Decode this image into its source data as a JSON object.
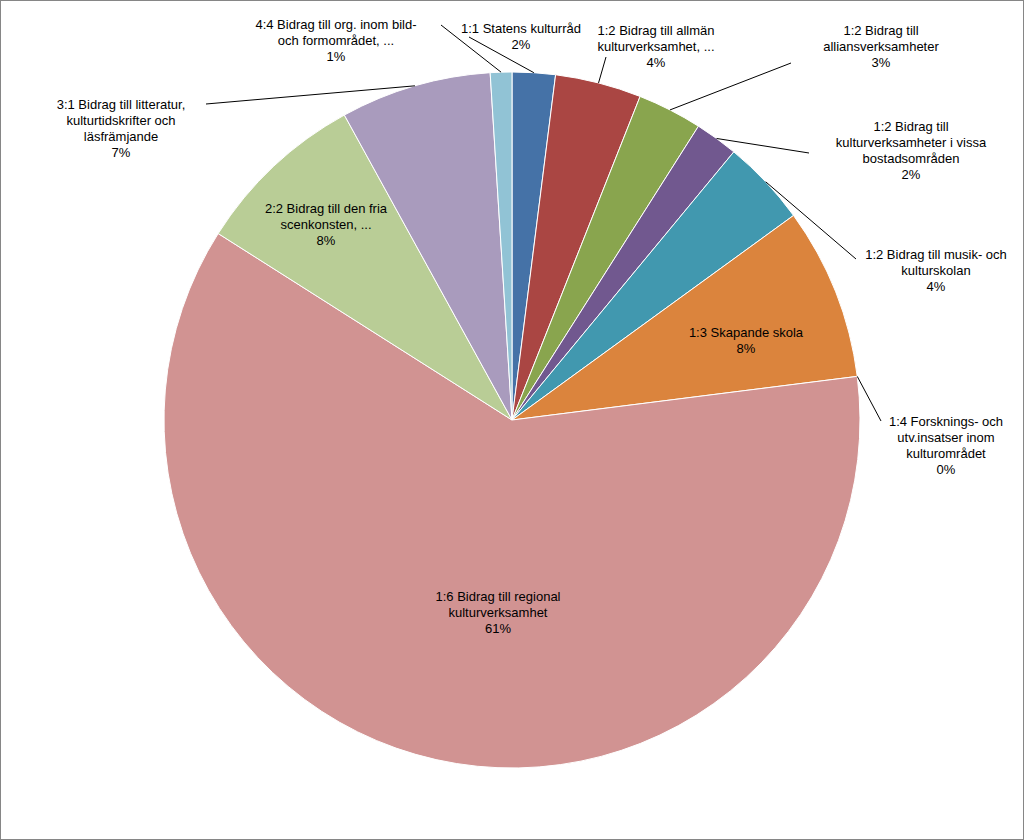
{
  "chart_data": {
    "type": "pie",
    "categories": [
      "1:1 Statens kulturråd",
      "1:2 Bidrag till allmän kulturverksamhet, ...",
      "1:2 Bidrag till alliansverksamheter",
      "1:2 Bidrag till kulturverksamheter i vissa bostadsområden",
      "1:2 Bidrag till musik- och kulturskolan",
      "1:3 Skapande skola",
      "1:4 Forsknings- och utv.insatser inom kulturområdet",
      "1:6 Bidrag till regional kulturverksamhet",
      "2:2 Bidrag till den fria scenkonsten, ...",
      "3:1 Bidrag till litteratur, kulturtidskrifter och läsfrämjande",
      "4:4 Bidrag till org. inom bild- och formområdet, ..."
    ],
    "values": [
      2,
      4,
      3,
      2,
      4,
      8,
      0,
      61,
      8,
      7,
      1
    ],
    "value_labels": [
      "2%",
      "4%",
      "3%",
      "2%",
      "4%",
      "8%",
      "0%",
      "61%",
      "8%",
      "7%",
      "1%"
    ],
    "colors": [
      "#4572a7",
      "#aa4643",
      "#89a54e",
      "#71588f",
      "#4198af",
      "#db843d",
      "#93a9cf",
      "#d19392",
      "#b9cd96",
      "#a99bbd",
      "#91c3d5"
    ],
    "data_labels": true
  }
}
